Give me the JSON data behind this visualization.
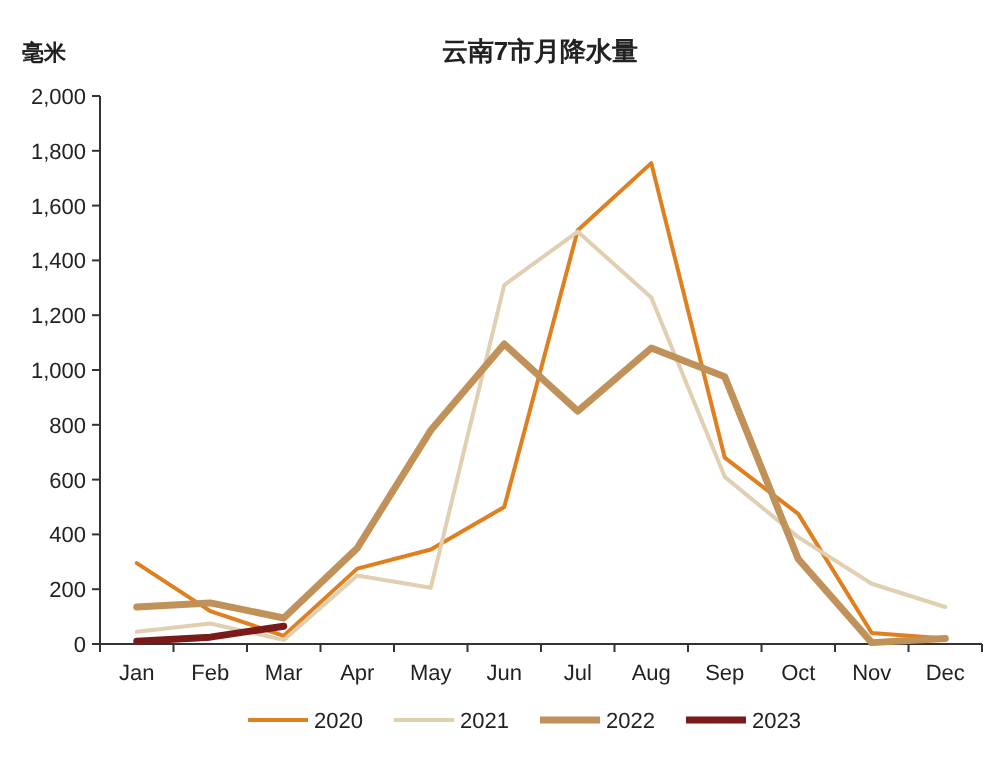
{
  "chart_data": {
    "type": "line",
    "title": "云南7市月降水量",
    "ylabel": "毫米",
    "categories": [
      "Jan",
      "Feb",
      "Mar",
      "Apr",
      "May",
      "Jun",
      "Jul",
      "Aug",
      "Sep",
      "Oct",
      "Nov",
      "Dec"
    ],
    "series": [
      {
        "name": "2020",
        "color": "#e07f1e",
        "values": [
          295,
          120,
          30,
          275,
          345,
          500,
          1510,
          1755,
          680,
          475,
          40,
          20
        ]
      },
      {
        "name": "2021",
        "color": "#e0cfb0",
        "values": [
          45,
          75,
          15,
          250,
          205,
          1310,
          1505,
          1265,
          610,
          390,
          220,
          135
        ]
      },
      {
        "name": "2022",
        "color": "#c0925a",
        "values": [
          135,
          150,
          95,
          350,
          780,
          1095,
          850,
          1080,
          975,
          310,
          5,
          20
        ]
      },
      {
        "name": "2023",
        "color": "#7b1a1a",
        "values": [
          10,
          25,
          65,
          null,
          null,
          null,
          null,
          null,
          null,
          null,
          null,
          null
        ]
      }
    ],
    "ylim": [
      0,
      2000
    ],
    "yticks": [
      0,
      200,
      400,
      600,
      800,
      {
        "value": 1000,
        "label": "1,000"
      },
      {
        "value": 1200,
        "label": "1,200"
      },
      {
        "value": 1400,
        "label": "1,400"
      },
      {
        "value": 1600,
        "label": "1,600"
      },
      {
        "value": 1800,
        "label": "1,800"
      },
      {
        "value": 2000,
        "label": "2,000"
      }
    ],
    "legend": "bottom",
    "grid": false,
    "marker": "none",
    "line_style": "solid"
  }
}
